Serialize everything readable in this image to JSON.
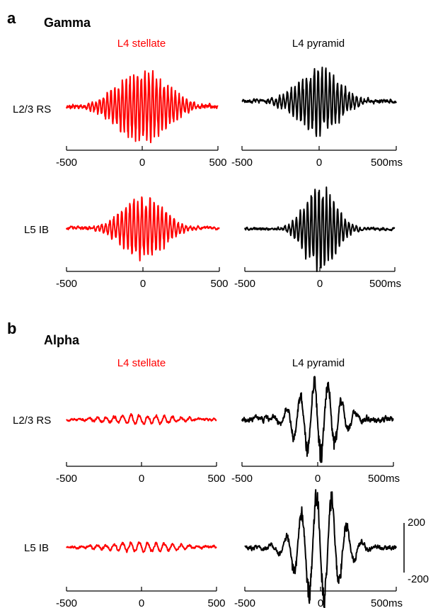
{
  "panels": [
    {
      "letter": "a",
      "title": "Gamma",
      "columns": [
        {
          "label": "L4 stellate",
          "color": "#ff0000"
        },
        {
          "label": "L4 pyramid",
          "color": "#000000"
        }
      ],
      "rows": [
        {
          "label": "L2/3 RS"
        },
        {
          "label": "L5 IB"
        }
      ]
    },
    {
      "letter": "b",
      "title": "Alpha",
      "columns": [
        {
          "label": "L4 stellate",
          "color": "#ff0000"
        },
        {
          "label": "L4 pyramid",
          "color": "#000000"
        }
      ],
      "rows": [
        {
          "label": "L2/3 RS"
        },
        {
          "label": "L5 IB"
        }
      ]
    }
  ],
  "scale_bar": {
    "top_label": "200",
    "bottom_label": "-200"
  },
  "chart_data": [
    {
      "type": "line",
      "panel": "a",
      "row": "L2/3 RS",
      "column": "L4 stellate",
      "color": "#ff0000",
      "x_ticks": [
        "-500",
        "0",
        "500"
      ],
      "xlim": [
        -500,
        500
      ],
      "ylim": [
        -200,
        200
      ],
      "waveform": {
        "frequency_hz": 40,
        "peak_amplitude": 90,
        "envelope_width_ms": 320,
        "baseline_noise": 8,
        "seed": 11
      }
    },
    {
      "type": "line",
      "panel": "a",
      "row": "L2/3 RS",
      "column": "L4 pyramid",
      "color": "#000000",
      "x_ticks": [
        "-500",
        "0",
        "500ms"
      ],
      "xlim": [
        -500,
        500
      ],
      "ylim": [
        -200,
        200
      ],
      "waveform": {
        "frequency_hz": 40,
        "peak_amplitude": 85,
        "envelope_width_ms": 260,
        "baseline_noise": 8,
        "seed": 23
      }
    },
    {
      "type": "line",
      "panel": "a",
      "row": "L5 IB",
      "column": "L4 stellate",
      "color": "#ff0000",
      "x_ticks": [
        "-500",
        "0",
        "500"
      ],
      "xlim": [
        -500,
        500
      ],
      "ylim": [
        -200,
        200
      ],
      "waveform": {
        "frequency_hz": 38,
        "peak_amplitude": 80,
        "envelope_width_ms": 260,
        "baseline_noise": 6,
        "seed": 37
      }
    },
    {
      "type": "line",
      "panel": "a",
      "row": "L5 IB",
      "column": "L4 pyramid",
      "color": "#000000",
      "x_ticks": [
        "-500",
        "0",
        "500ms"
      ],
      "xlim": [
        -500,
        500
      ],
      "ylim": [
        -200,
        200
      ],
      "waveform": {
        "frequency_hz": 40,
        "peak_amplitude": 105,
        "envelope_width_ms": 200,
        "baseline_noise": 6,
        "seed": 41
      }
    },
    {
      "type": "line",
      "panel": "b",
      "row": "L2/3 RS",
      "column": "L4 stellate",
      "color": "#ff0000",
      "x_ticks": [
        "-500",
        "0",
        "500"
      ],
      "xlim": [
        -500,
        500
      ],
      "ylim": [
        -200,
        200
      ],
      "waveform": {
        "frequency_hz": 18,
        "peak_amplitude": 12,
        "envelope_width_ms": 450,
        "baseline_noise": 5,
        "seed": 53
      }
    },
    {
      "type": "line",
      "panel": "b",
      "row": "L2/3 RS",
      "column": "L4 pyramid",
      "color": "#000000",
      "x_ticks": [
        "-500",
        "0",
        "500ms"
      ],
      "xlim": [
        -500,
        500
      ],
      "ylim": [
        -200,
        200
      ],
      "waveform": {
        "frequency_hz": 11,
        "peak_amplitude": 105,
        "envelope_width_ms": 260,
        "baseline_noise": 12,
        "seed": 67
      }
    },
    {
      "type": "line",
      "panel": "b",
      "row": "L5 IB",
      "column": "L4 stellate",
      "color": "#ff0000",
      "x_ticks": [
        "-500",
        "0",
        "500"
      ],
      "xlim": [
        -500,
        500
      ],
      "ylim": [
        -200,
        200
      ],
      "waveform": {
        "frequency_hz": 18,
        "peak_amplitude": 12,
        "envelope_width_ms": 450,
        "baseline_noise": 5,
        "seed": 71
      }
    },
    {
      "type": "line",
      "panel": "b",
      "row": "L5 IB",
      "column": "L4 pyramid",
      "color": "#000000",
      "x_ticks": [
        "-500",
        "0",
        "500ms"
      ],
      "xlim": [
        -500,
        500
      ],
      "ylim": [
        -200,
        200
      ],
      "waveform": {
        "frequency_hz": 10,
        "peak_amplitude": 150,
        "envelope_width_ms": 260,
        "baseline_noise": 10,
        "seed": 83
      }
    }
  ]
}
